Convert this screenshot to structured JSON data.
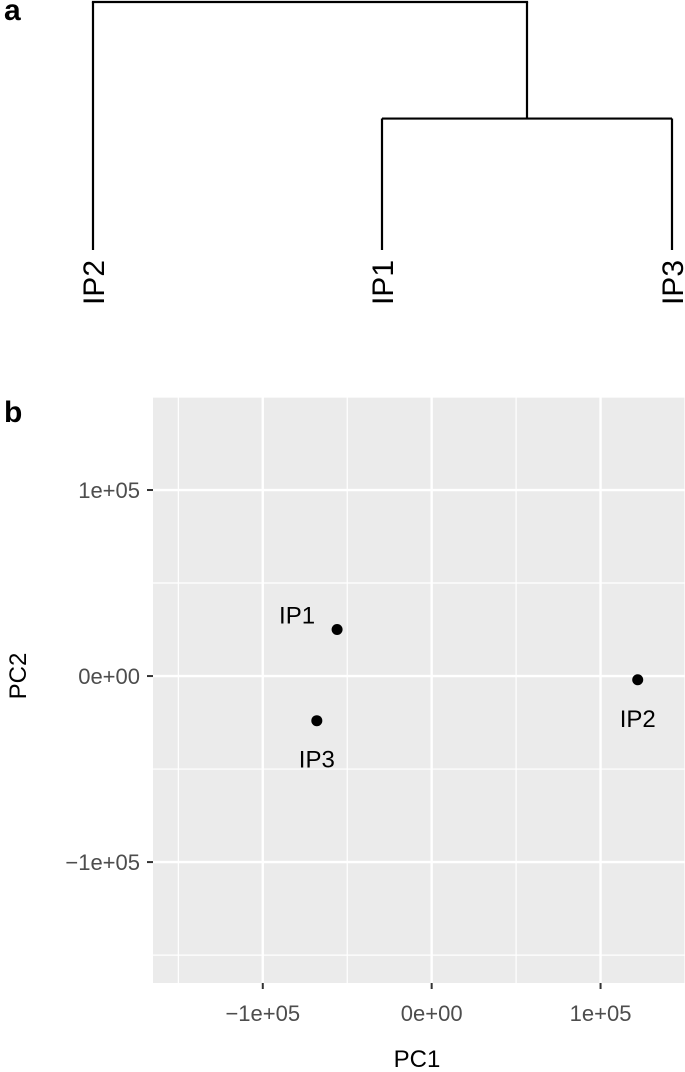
{
  "panels": {
    "a": "a",
    "b": "b"
  },
  "chart_data": [
    {
      "type": "dendrogram",
      "panel": "a",
      "leaves": [
        "IP2",
        "IP1",
        "IP3"
      ],
      "merges": [
        {
          "left": "IP1",
          "right": "IP3",
          "relative_height": 0.53
        },
        {
          "left": "IP2",
          "right": "IP1+IP3",
          "relative_height": 1.0
        }
      ]
    },
    {
      "type": "scatter",
      "panel": "b",
      "xlabel": "PC1",
      "ylabel": "PC2",
      "xlim": [
        -165000,
        150000
      ],
      "ylim": [
        -165000,
        150000
      ],
      "xticks": [
        -100000,
        0,
        100000
      ],
      "xtick_labels": [
        "−1e+05",
        "0e+00",
        "1e+05"
      ],
      "yticks": [
        -100000,
        0,
        100000
      ],
      "ytick_labels": [
        "−1e+05",
        "0e+00",
        "1e+05"
      ],
      "grid": true,
      "background": "#ebebeb",
      "points": [
        {
          "label": "IP1",
          "x": -56000,
          "y": 25000,
          "label_pos": "above-left"
        },
        {
          "label": "IP3",
          "x": -68000,
          "y": -24000,
          "label_pos": "below"
        },
        {
          "label": "IP2",
          "x": 122000,
          "y": -2000,
          "label_pos": "below"
        }
      ]
    }
  ]
}
